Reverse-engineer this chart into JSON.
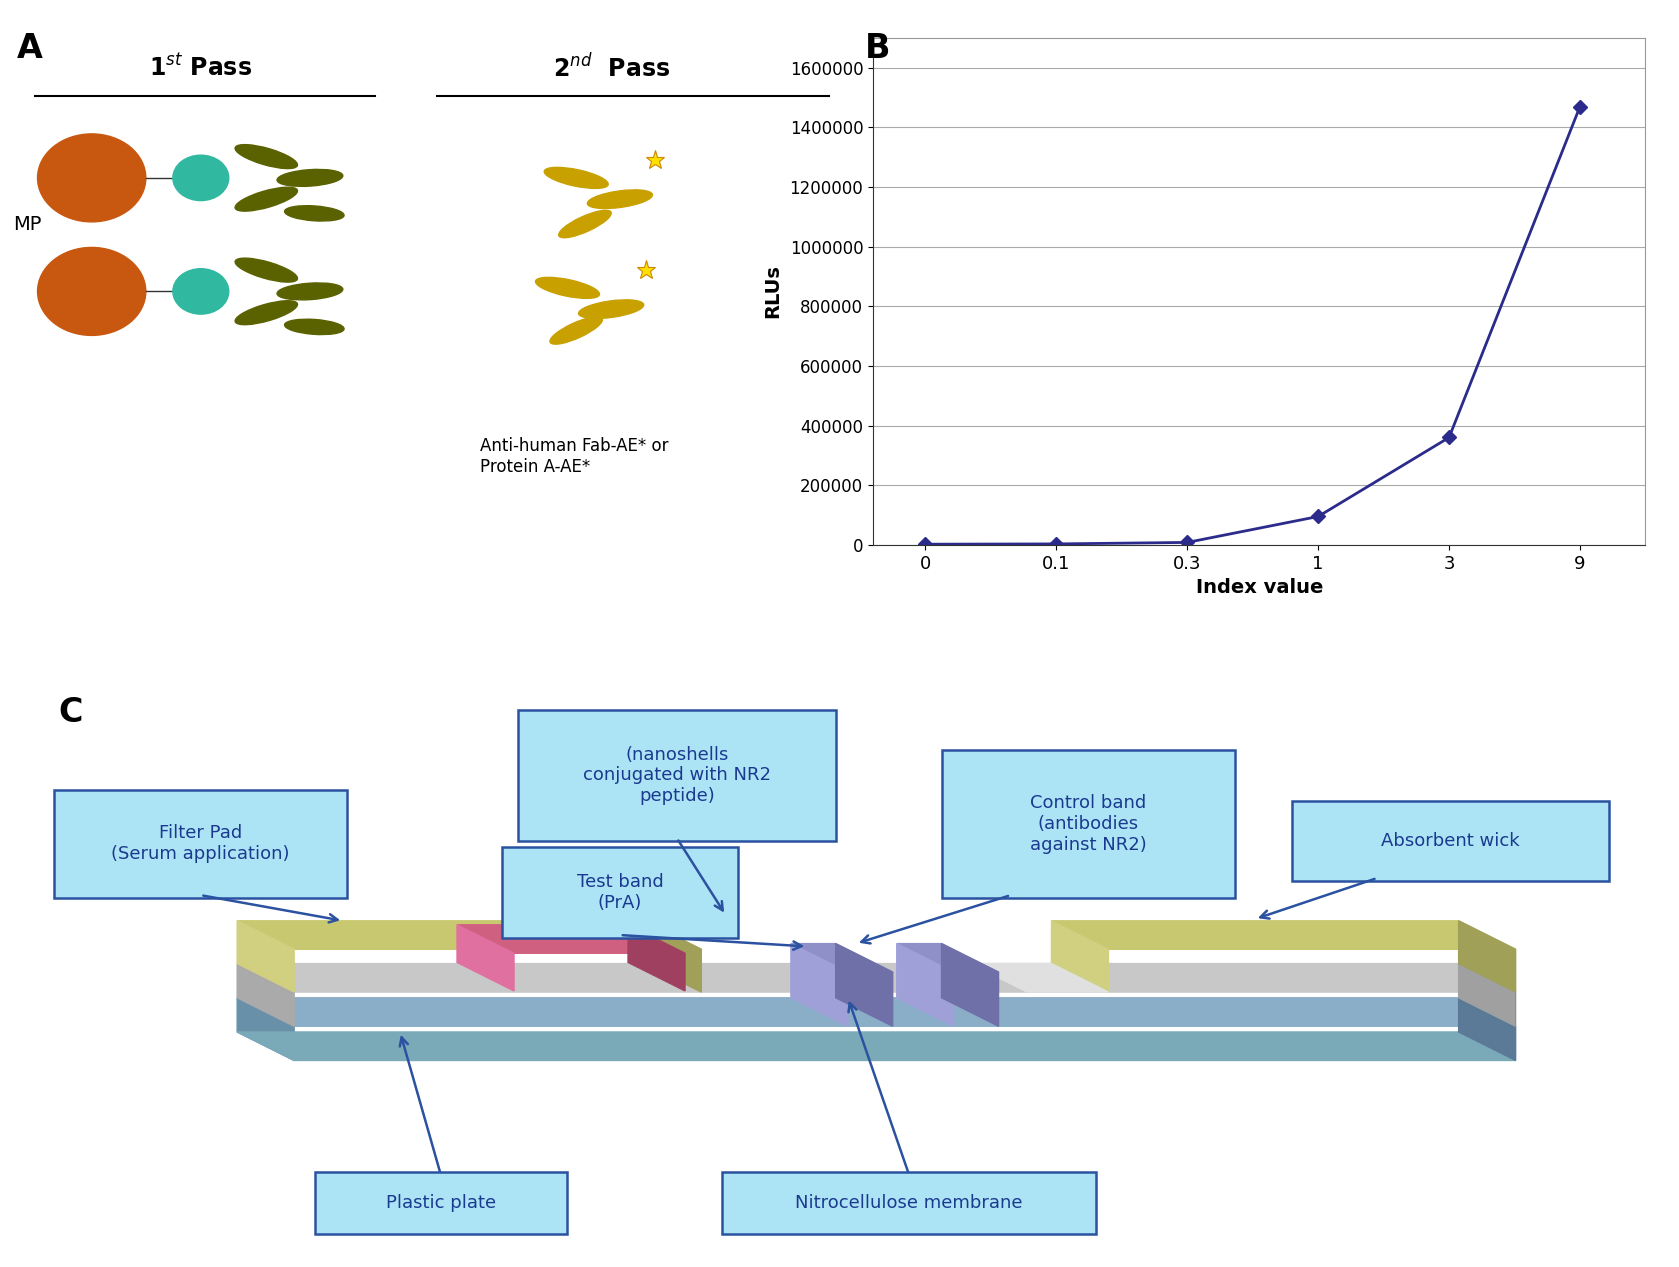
{
  "chart_x_pos": [
    0,
    1,
    2,
    3,
    4,
    5
  ],
  "chart_x_labels": [
    "0",
    "0.1",
    "0.3",
    "1",
    "3",
    "9"
  ],
  "chart_y": [
    2000,
    3000,
    8000,
    95000,
    360000,
    1470000
  ],
  "chart_ylabel": "RLUs",
  "chart_xlabel": "Index value",
  "chart_yticks": [
    0,
    200000,
    400000,
    600000,
    800000,
    1000000,
    1200000,
    1400000,
    1600000
  ],
  "chart_color": "#2B2B8B",
  "chart_marker": "D",
  "panel_A_label": "A",
  "panel_B_label": "B",
  "panel_C_label": "C",
  "mp_label": "MP",
  "antifab_label": "Anti-human Fab-AE* or\nProtein A-AE*",
  "box_color": "#ADE4F5",
  "box_edge_color": "#2B52A0",
  "box_text_color": "#1A3A90",
  "arrow_color": "#2B52A0",
  "label_nanoshells": "(nanoshells\nconjugated with NR2\npeptide)",
  "label_filter": "Filter Pad\n(Serum application)",
  "label_testband": "Test band\n(PrA)",
  "label_control": "Control band\n(antibodies\nagainst NR2)",
  "label_absorbent": "Absorbent wick",
  "label_plastic": "Plastic plate",
  "label_nitro": "Nitrocellulose membrane"
}
